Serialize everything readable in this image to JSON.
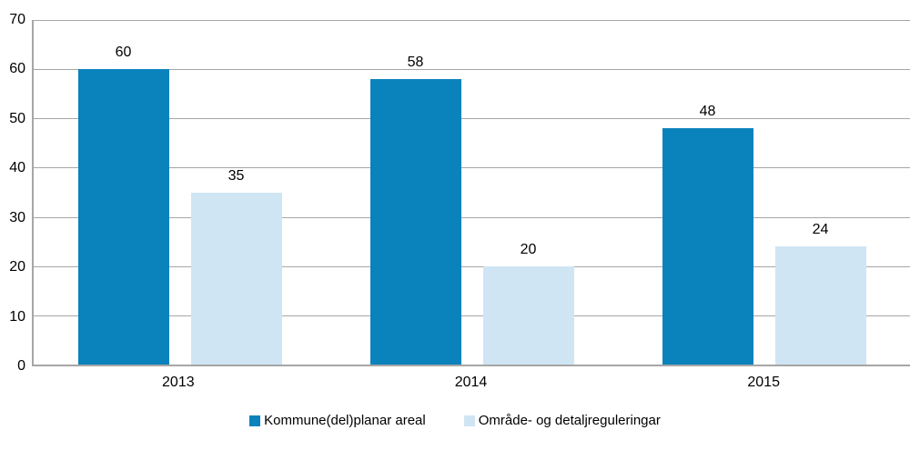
{
  "chart_data": {
    "type": "bar",
    "title": "",
    "xlabel": "",
    "ylabel": "",
    "categories": [
      "2013",
      "2014",
      "2015"
    ],
    "series": [
      {
        "name": "Kommune(del)planar areal",
        "color": "#0a82bc",
        "values": [
          60,
          58,
          48
        ]
      },
      {
        "name": "Område- og detaljreguleringar",
        "color": "#cfe5f4",
        "values": [
          35,
          20,
          24
        ]
      }
    ],
    "ylim": [
      0,
      70
    ],
    "yticks": [
      0,
      10,
      20,
      30,
      40,
      50,
      60,
      70
    ],
    "grid": true,
    "legend_position": "bottom"
  },
  "colors": {
    "background": "#ffffff",
    "gridline": "#a6a6a6",
    "axis_line": "#a6a6a6",
    "text": "#000000"
  }
}
